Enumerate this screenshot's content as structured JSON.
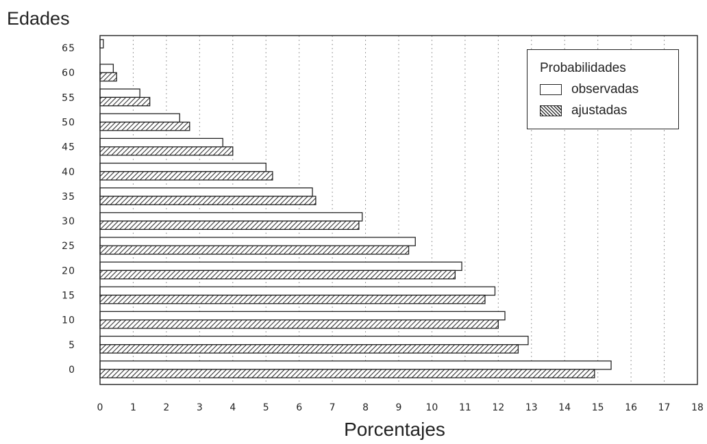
{
  "chart_data": {
    "type": "bar",
    "orientation": "horizontal",
    "categories": [
      "0",
      "5",
      "10",
      "15",
      "20",
      "25",
      "30",
      "35",
      "40",
      "45",
      "50",
      "55",
      "60",
      "65"
    ],
    "series": [
      {
        "name": "observadas",
        "values": [
          15.4,
          12.9,
          12.2,
          11.9,
          10.9,
          9.5,
          7.9,
          6.4,
          5.0,
          3.7,
          2.4,
          1.2,
          0.4,
          0.1
        ]
      },
      {
        "name": "ajustadas",
        "values": [
          14.9,
          12.6,
          12.0,
          11.6,
          10.7,
          9.3,
          7.8,
          6.5,
          5.2,
          4.0,
          2.7,
          1.5,
          0.5,
          0.0
        ]
      }
    ],
    "title": "",
    "xlabel": "Porcentajes",
    "ylabel": "Edades",
    "xlim": [
      0,
      18
    ],
    "x_ticks": [
      "0",
      "1",
      "2",
      "3",
      "4",
      "5",
      "6",
      "7",
      "8",
      "9",
      "10",
      "11",
      "12",
      "13",
      "14",
      "15",
      "16",
      "17",
      "18"
    ],
    "grid": "vertical",
    "legend": {
      "title": "Probabilidades",
      "placement": "top-right",
      "entries": [
        "observadas",
        "ajustadas"
      ]
    },
    "colors": {
      "observadas_fill": "#ffffff",
      "ajustadas_fill": "hatched",
      "stroke": "#222222"
    }
  }
}
